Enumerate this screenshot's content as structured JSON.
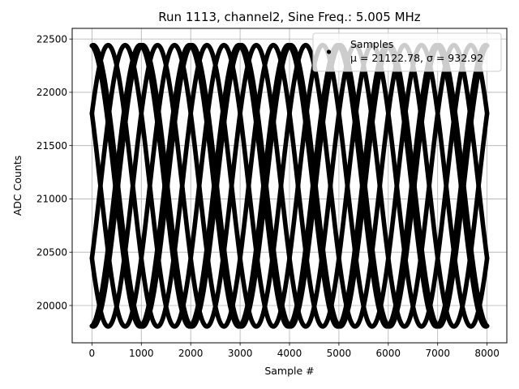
{
  "chart_data": {
    "type": "scatter",
    "title": "Run 1113, channel2, Sine Freq.: 5.005 MHz",
    "xlabel": "Sample #",
    "ylabel": "ADC Counts",
    "xlim": [
      -400,
      8400
    ],
    "ylim": [
      19650,
      22600
    ],
    "xticks": [
      0,
      1000,
      2000,
      3000,
      4000,
      5000,
      6000,
      7000,
      8000
    ],
    "xtick_labels": [
      "0",
      "1000",
      "2000",
      "3000",
      "4000",
      "5000",
      "6000",
      "7000",
      "8000"
    ],
    "yticks": [
      20000,
      20500,
      21000,
      21500,
      22000,
      22500
    ],
    "ytick_labels": [
      "20000",
      "20500",
      "21000",
      "21500",
      "22000",
      "22500"
    ],
    "grid": true,
    "legend_position": "top-right",
    "series": [
      {
        "name": "Samples",
        "label_extra": "μ = 21122.78, σ = 932.92",
        "color": "#000000",
        "marker": "dot",
        "model": {
          "mean": 21122.78,
          "amplitude": 1320,
          "x_start": 0,
          "x_end": 8000,
          "trace_period_samples": 2000
        },
        "traces": [
          {
            "phase_deg": 85,
            "start_value": 22290
          },
          {
            "phase_deg": 31,
            "start_value": 21620
          },
          {
            "phase_deg": -31,
            "start_value": 20620
          },
          {
            "phase_deg": -85,
            "start_value": 19950
          },
          {
            "phase_deg": 95,
            "start_value": 22370
          },
          {
            "phase_deg": 149,
            "start_value": 21620
          },
          {
            "phase_deg": -149,
            "start_value": 20620
          },
          {
            "phase_deg": -95,
            "start_value": 19870
          }
        ]
      }
    ]
  }
}
